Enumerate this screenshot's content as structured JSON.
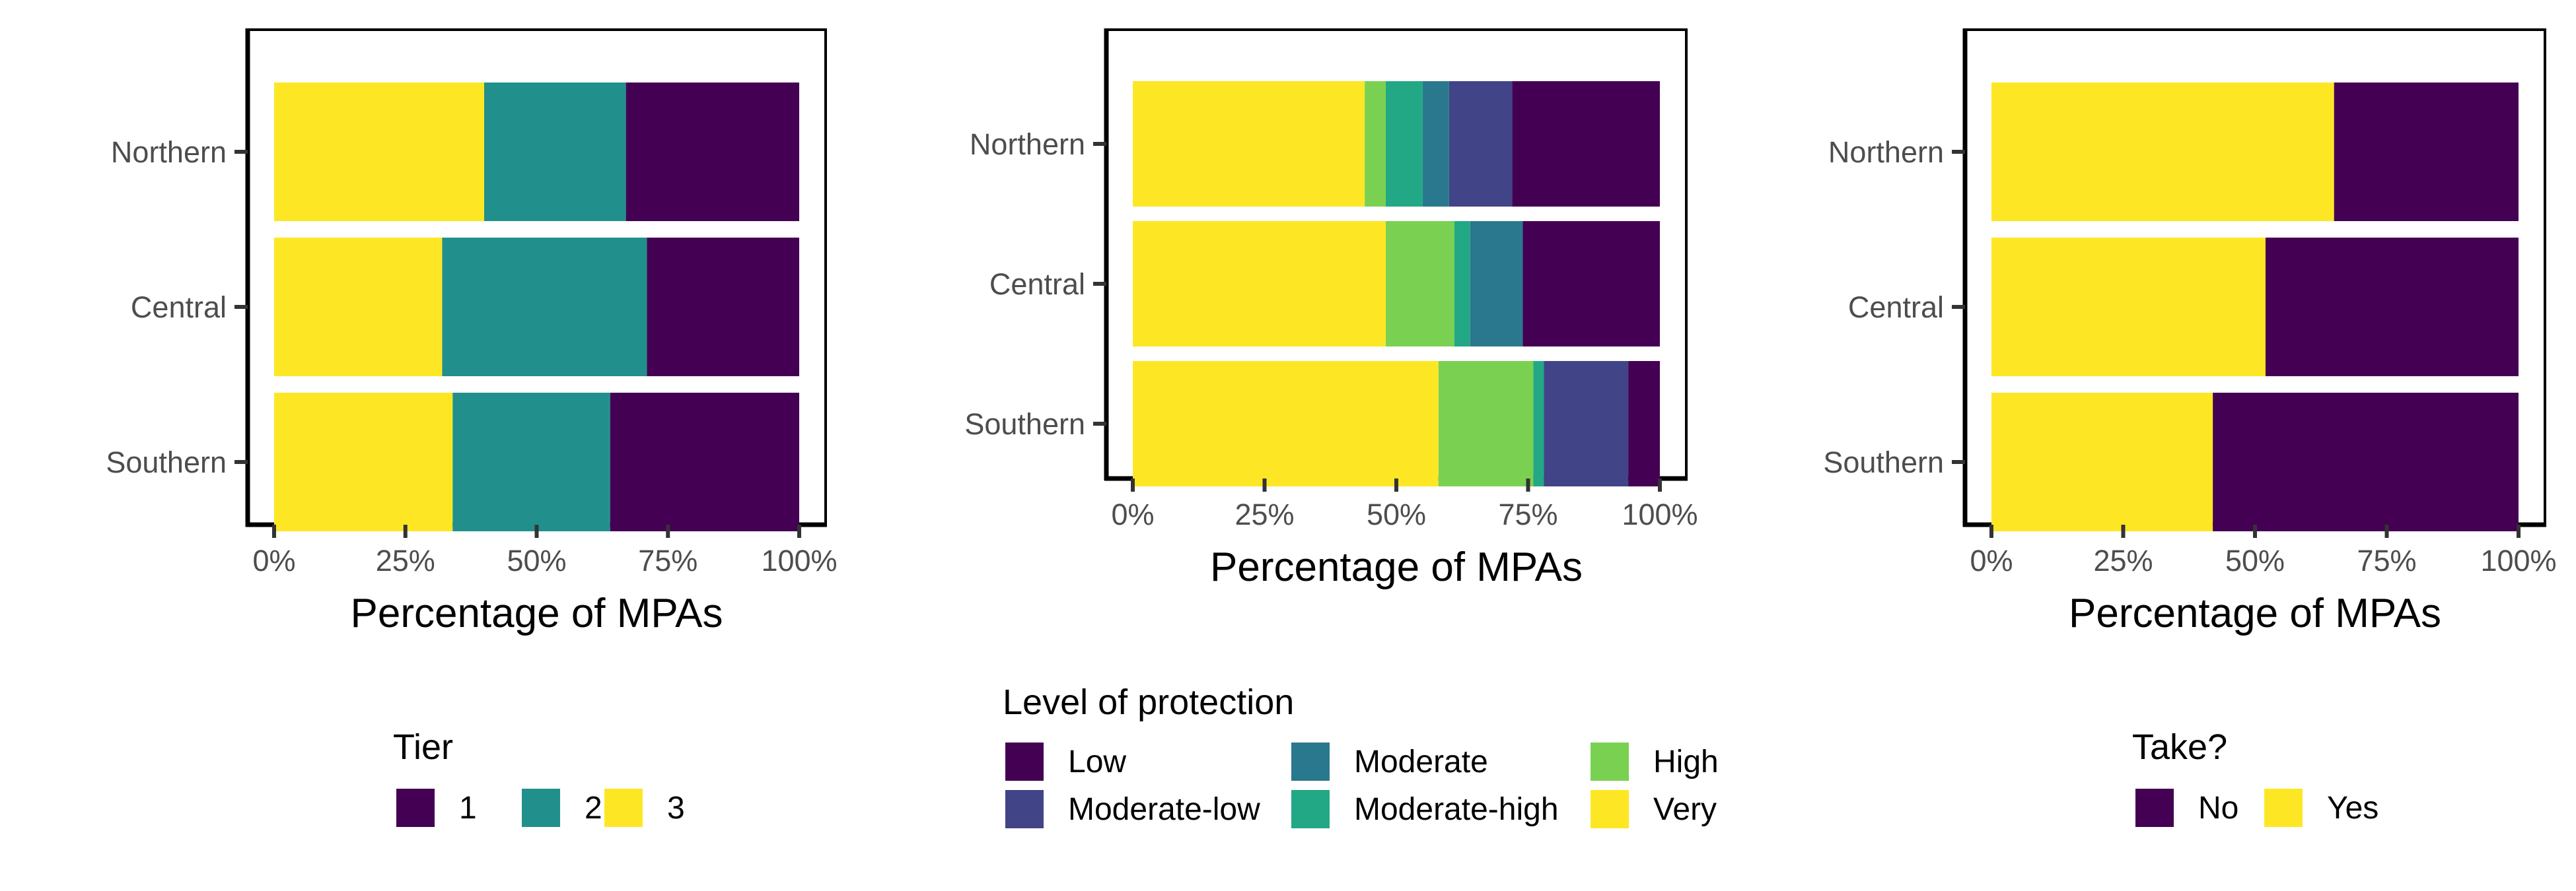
{
  "chart_data": [
    {
      "type": "bar",
      "orientation": "horizontal",
      "stacked": true,
      "categories": [
        "Northern",
        "Central",
        "Southern"
      ],
      "xlabel": "Percentage of MPAs",
      "xticks": [
        "0%",
        "25%",
        "50%",
        "75%",
        "100%"
      ],
      "xlim": [
        0,
        100
      ],
      "legend_title": "Tier",
      "series": [
        {
          "name": "1",
          "color": "#440154",
          "values": [
            33,
            29,
            36
          ]
        },
        {
          "name": "2",
          "color": "#21908C",
          "values": [
            27,
            39,
            30
          ]
        },
        {
          "name": "3",
          "color": "#FDE725",
          "values": [
            40,
            32,
            34
          ]
        }
      ]
    },
    {
      "type": "bar",
      "orientation": "horizontal",
      "stacked": true,
      "categories": [
        "Northern",
        "Central",
        "Southern"
      ],
      "xlabel": "Percentage of MPAs",
      "xticks": [
        "0%",
        "25%",
        "50%",
        "75%",
        "100%"
      ],
      "xlim": [
        0,
        100
      ],
      "legend_title": "Level of protection",
      "series": [
        {
          "name": "Low",
          "color": "#440154",
          "values": [
            28,
            26,
            6
          ]
        },
        {
          "name": "Moderate-low",
          "color": "#414487",
          "values": [
            12,
            0,
            16
          ]
        },
        {
          "name": "Moderate",
          "color": "#2A788E",
          "values": [
            5,
            10,
            0
          ]
        },
        {
          "name": "Moderate-high",
          "color": "#22A884",
          "values": [
            7,
            3,
            2
          ]
        },
        {
          "name": "High",
          "color": "#7AD151",
          "values": [
            4,
            13,
            18
          ]
        },
        {
          "name": "Very",
          "color": "#FDE725",
          "values": [
            44,
            48,
            58
          ]
        }
      ]
    },
    {
      "type": "bar",
      "orientation": "horizontal",
      "stacked": true,
      "categories": [
        "Northern",
        "Central",
        "Southern"
      ],
      "xlabel": "Percentage of MPAs",
      "xticks": [
        "0%",
        "25%",
        "50%",
        "75%",
        "100%"
      ],
      "xlim": [
        0,
        100
      ],
      "legend_title": "Take?",
      "series": [
        {
          "name": "No",
          "color": "#440154",
          "values": [
            35,
            48,
            58
          ]
        },
        {
          "name": "Yes",
          "color": "#FDE725",
          "values": [
            65,
            52,
            42
          ]
        }
      ]
    }
  ]
}
